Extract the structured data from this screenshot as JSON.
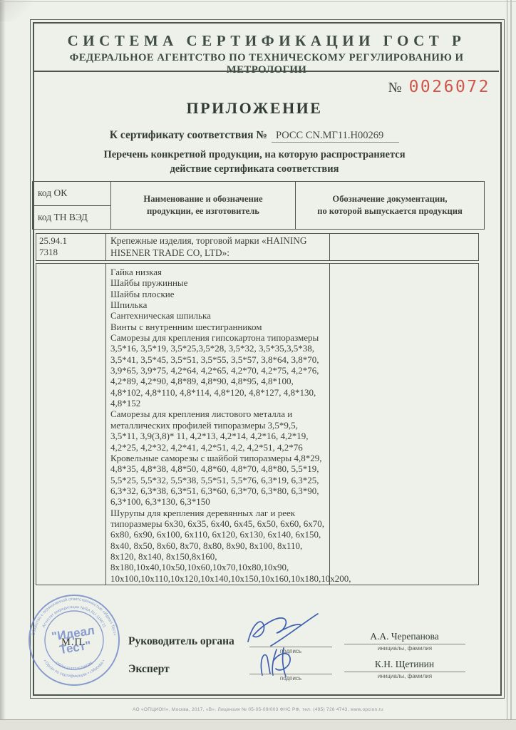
{
  "header": {
    "line1": "СИСТЕМА СЕРТИФИКАЦИИ ГОСТ Р",
    "line2": "ФЕДЕРАЛЬНОЕ АГЕНТСТВО ПО ТЕХНИЧЕСКОМУ РЕГУЛИРОВАНИЮ И МЕТРОЛОГИИ"
  },
  "serial": {
    "symbol": "№",
    "number": "0026072",
    "color": "#d0564b"
  },
  "title": "ПРИЛОЖЕНИЕ",
  "cert": {
    "label": "К сертификату соответствия №",
    "value": "РОСС CN.МГ11.Н00269"
  },
  "subtitle": "Перечень конкретной продукции,  на которую распространяется\nдействие сертификата соответствия",
  "table": {
    "header": {
      "col1_top": "код ОК",
      "col1_bottom": "код ТН ВЭД",
      "col2": "Наименование и обозначение\nпродукции, ее изготовитель",
      "col3": "Обозначение документации,\nпо которой выпускается продукция"
    },
    "row1": {
      "codes": "25.94.1\n7318",
      "brand": "Крепежные изделия, торговой марки «HAINING HISENER TRADE CO, LTD»:"
    },
    "product_lines": [
      "Гайка низкая",
      "Шайбы пружинные",
      "Шайбы плоские",
      "Шпилька",
      "Сантехническая шпилька",
      "Винты с внутренним шестигранником",
      "Саморезы для крепления гипсокартона типоразмеры 3,5*16, 3,5*19, 3,5*25,3,5*28, 3,5*32, 3,5*35,3,5*38, 3,5*41, 3,5*45, 3,5*51, 3,5*55, 3,5*57, 3,8*64, 3,8*70, 3,9*65, 3,9*75, 4,2*64, 4,2*65, 4,2*70, 4,2*75, 4,2*76, 4,2*89, 4,2*90, 4,8*89, 4,8*90, 4,8*95, 4,8*100, 4,8*102, 4,8*110, 4,8*114, 4,8*120, 4,8*127, 4,8*130, 4,8*152",
      "Саморезы для крепления листового металла и металлических профилей типоразмеры 3,5*9,5, 3,5*11, 3,9(3,8)* 11, 4,2*13, 4,2*14, 4,2*16, 4,2*19, 4,2*25, 4,2*32, 4,2*41, 4,2*51, 4,2, 4,2*51, 4,2*76",
      "Кровельные саморезы с шайбой типоразмеры 4,8*29, 4,8*35, 4,8*38, 4,8*50, 4,8*60, 4,8*70, 4,8*80, 5,5*19, 5,5*25, 5,5*32, 5,5*38, 5,5*51, 5,5*76, 6,3*19, 6,3*25, 6,3*32, 6,3*38, 6,3*51, 6,3*60, 6,3*70, 6,3*80, 6,3*90, 6,3*100, 6,3*130, 6,3*150",
      "Шурупы для крепления деревянных лаг и реек типоразмеры 6х30, 6х35, 6х40, 6х45, 6х50, 6х60, 6х70, 6х80, 6х90, 6х100, 6х110, 6х120, 6х130, 6х140, 6х150, 8х40, 8х50, 8х60, 8х70, 8х80, 8х90, 8х100, 8х110, 8х120, 8х140, 8х150,8х160, 8х180,10х40,10х50,10х60,10х70,10х80,10х90, 10х100,10х110,10х120,10х140,10х150,10х160,10х180,10х200,"
    ]
  },
  "signatures": {
    "head": {
      "label": "Руководитель орг­ана",
      "caption": "подпись",
      "name": "А.А. Черепанова",
      "name_caption": "инициалы, фамилия"
    },
    "expert": {
      "label": "Эксперт",
      "caption": "подпись",
      "name": "К.Н. Щетинин",
      "name_caption": "инициалы, фамилия"
    }
  },
  "stamp": {
    "mp": "М.П.",
    "ring_outer_top": "Общество с ограниченной ответственностью «Идеал Тест»",
    "ring_outer_bottom": "• Орган по сертификации • г.Москва •",
    "ring_inner_top": "Аттестат аккредитации №RA.RU.11МГ11",
    "ring_inner_bottom": "ОГРН 1137746705035",
    "center_line1": "\"Идеал",
    "center_line2": "Тест\"",
    "color": "#6d83c6"
  },
  "footer": "АО «ОПЦИОН», Москва, 2017, «В».  Лицензия № 05-05-09/003 ФНС РФ,  тел. (495) 726 4743,  www.opcion.ru"
}
